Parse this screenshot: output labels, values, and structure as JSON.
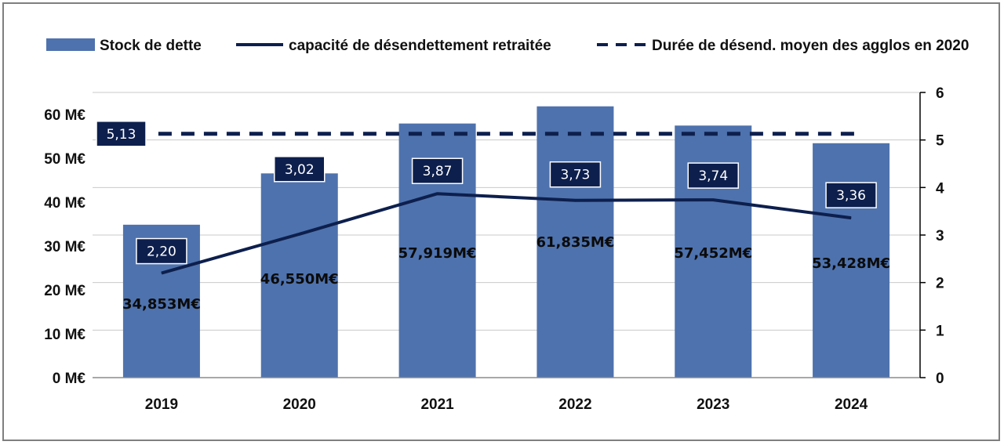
{
  "chart_data": {
    "type": "bar",
    "title": "",
    "categories": [
      "2019",
      "2020",
      "2021",
      "2022",
      "2023",
      "2024"
    ],
    "series": [
      {
        "name": "Stock de dette",
        "type": "bar",
        "axis": "left",
        "values": [
          34.853,
          46.55,
          57.919,
          61.835,
          57.452,
          53.428
        ],
        "labels": [
          "34,853M€",
          "46,550M€",
          "57,919M€",
          "61,835M€",
          "57,452M€",
          "53,428M€"
        ],
        "color": "#4e72ad"
      },
      {
        "name": "capacité de désendettement retraitée",
        "type": "line",
        "axis": "right",
        "values": [
          2.2,
          3.02,
          3.87,
          3.73,
          3.74,
          3.36
        ],
        "labels": [
          "2,20",
          "3,02",
          "3,87",
          "3,73",
          "3,74",
          "3,36"
        ],
        "color": "#0d1f4d"
      },
      {
        "name": "Durée de désend. moyen des agglos en 2020",
        "type": "line-dashed",
        "axis": "right",
        "values": [
          5.13,
          5.13,
          5.13,
          5.13,
          5.13,
          5.13
        ],
        "labels": [
          "5,13"
        ],
        "color": "#0d1f4d"
      }
    ],
    "y_left": {
      "min": 0,
      "max": 65,
      "ticks": [
        0,
        10,
        20,
        30,
        40,
        50,
        60
      ],
      "tick_labels": [
        "0 M€",
        "10 M€",
        "20 M€",
        "30 M€",
        "40 M€",
        "50 M€",
        "60 M€"
      ]
    },
    "y_right": {
      "min": 0,
      "max": 6,
      "ticks": [
        0,
        1,
        2,
        3,
        4,
        5,
        6
      ],
      "tick_labels": [
        "0",
        "1",
        "2",
        "3",
        "4",
        "5",
        "6"
      ]
    },
    "legend_position": "top",
    "grid": true,
    "label_box_color": "#0d1f4d"
  }
}
